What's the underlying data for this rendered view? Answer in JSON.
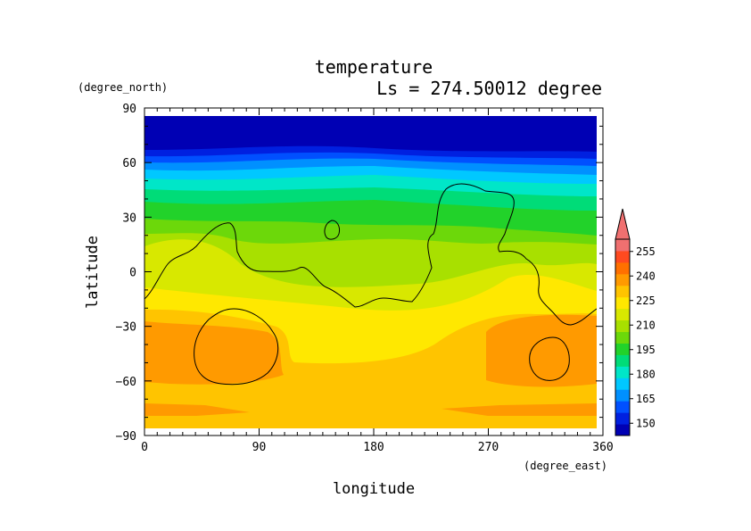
{
  "chart_data": {
    "type": "heatmap",
    "title": "temperature",
    "subtitle": "Ls = 274.50012 degree",
    "xlabel": "longitude",
    "ylabel": "latitude",
    "x_units": "(degree_east)",
    "y_units": "(degree_north)",
    "xlim": [
      0,
      360
    ],
    "ylim": [
      -90,
      90
    ],
    "x_ticks": [
      0,
      90,
      180,
      270,
      360
    ],
    "y_ticks": [
      90,
      60,
      30,
      0,
      -30,
      -60,
      -90
    ],
    "x_tick_labels": [
      "0",
      "90",
      "180",
      "270",
      "360"
    ],
    "y_tick_labels": [
      "90",
      "60",
      "30",
      "0",
      "−30",
      "−60",
      "−90"
    ],
    "colorbar": {
      "levels": [
        142.5,
        150,
        157.5,
        165,
        172.5,
        180,
        187.5,
        195,
        202.5,
        210,
        217.5,
        225,
        232.5,
        240,
        247.5,
        255,
        262.5
      ],
      "tick_values": [
        150,
        165,
        180,
        195,
        210,
        225,
        240,
        255
      ],
      "tick_labels": [
        "150",
        "165",
        "180",
        "195",
        "210",
        "225",
        "240",
        "255"
      ],
      "colors": [
        "#0000b4",
        "#0020e0",
        "#0050ff",
        "#0090ff",
        "#00c8ff",
        "#00e6c8",
        "#00dc78",
        "#22d22a",
        "#6cd80a",
        "#a8e000",
        "#d8e800",
        "#ffe800",
        "#ffc400",
        "#ff9a00",
        "#ff7000",
        "#ff4a20",
        "#f07070"
      ],
      "extend": "max"
    },
    "contour_color": "#000000"
  }
}
